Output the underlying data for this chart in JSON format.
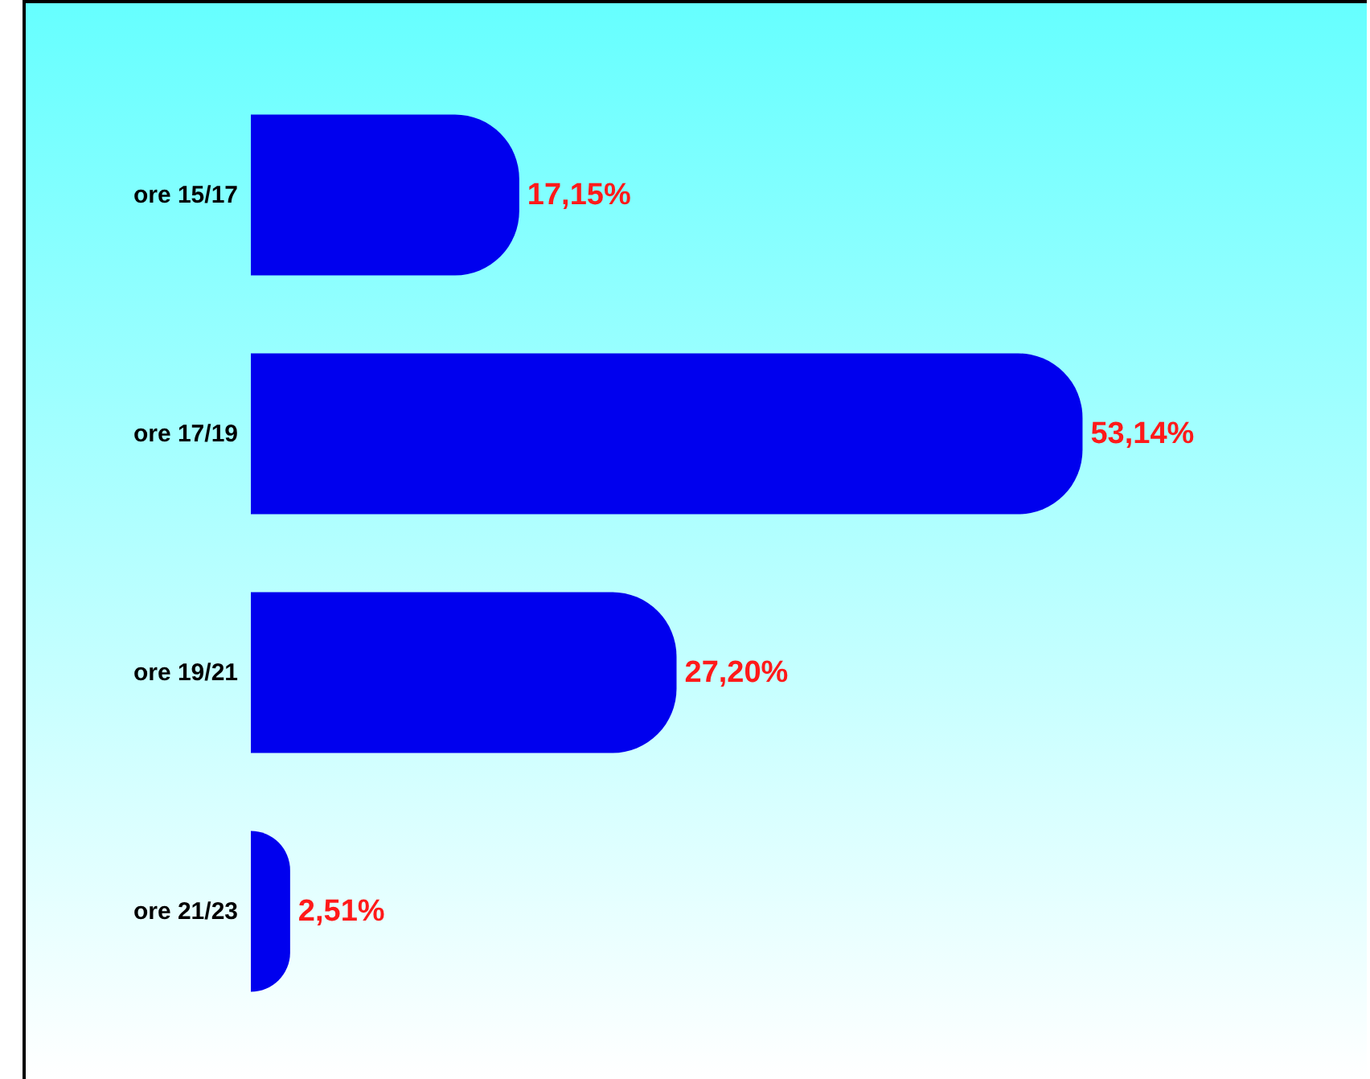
{
  "chart_data": {
    "type": "bar",
    "orientation": "horizontal",
    "categories": [
      "ore 15/17",
      "ore 17/19",
      "ore 19/21",
      "ore 21/23"
    ],
    "values": [
      17.15,
      53.14,
      27.2,
      2.51
    ],
    "color": "#0000ee",
    "value_labels": [
      "17,15%",
      "53,14%",
      "27,20%",
      "2,51%"
    ],
    "tick_labels": "y"
  }
}
